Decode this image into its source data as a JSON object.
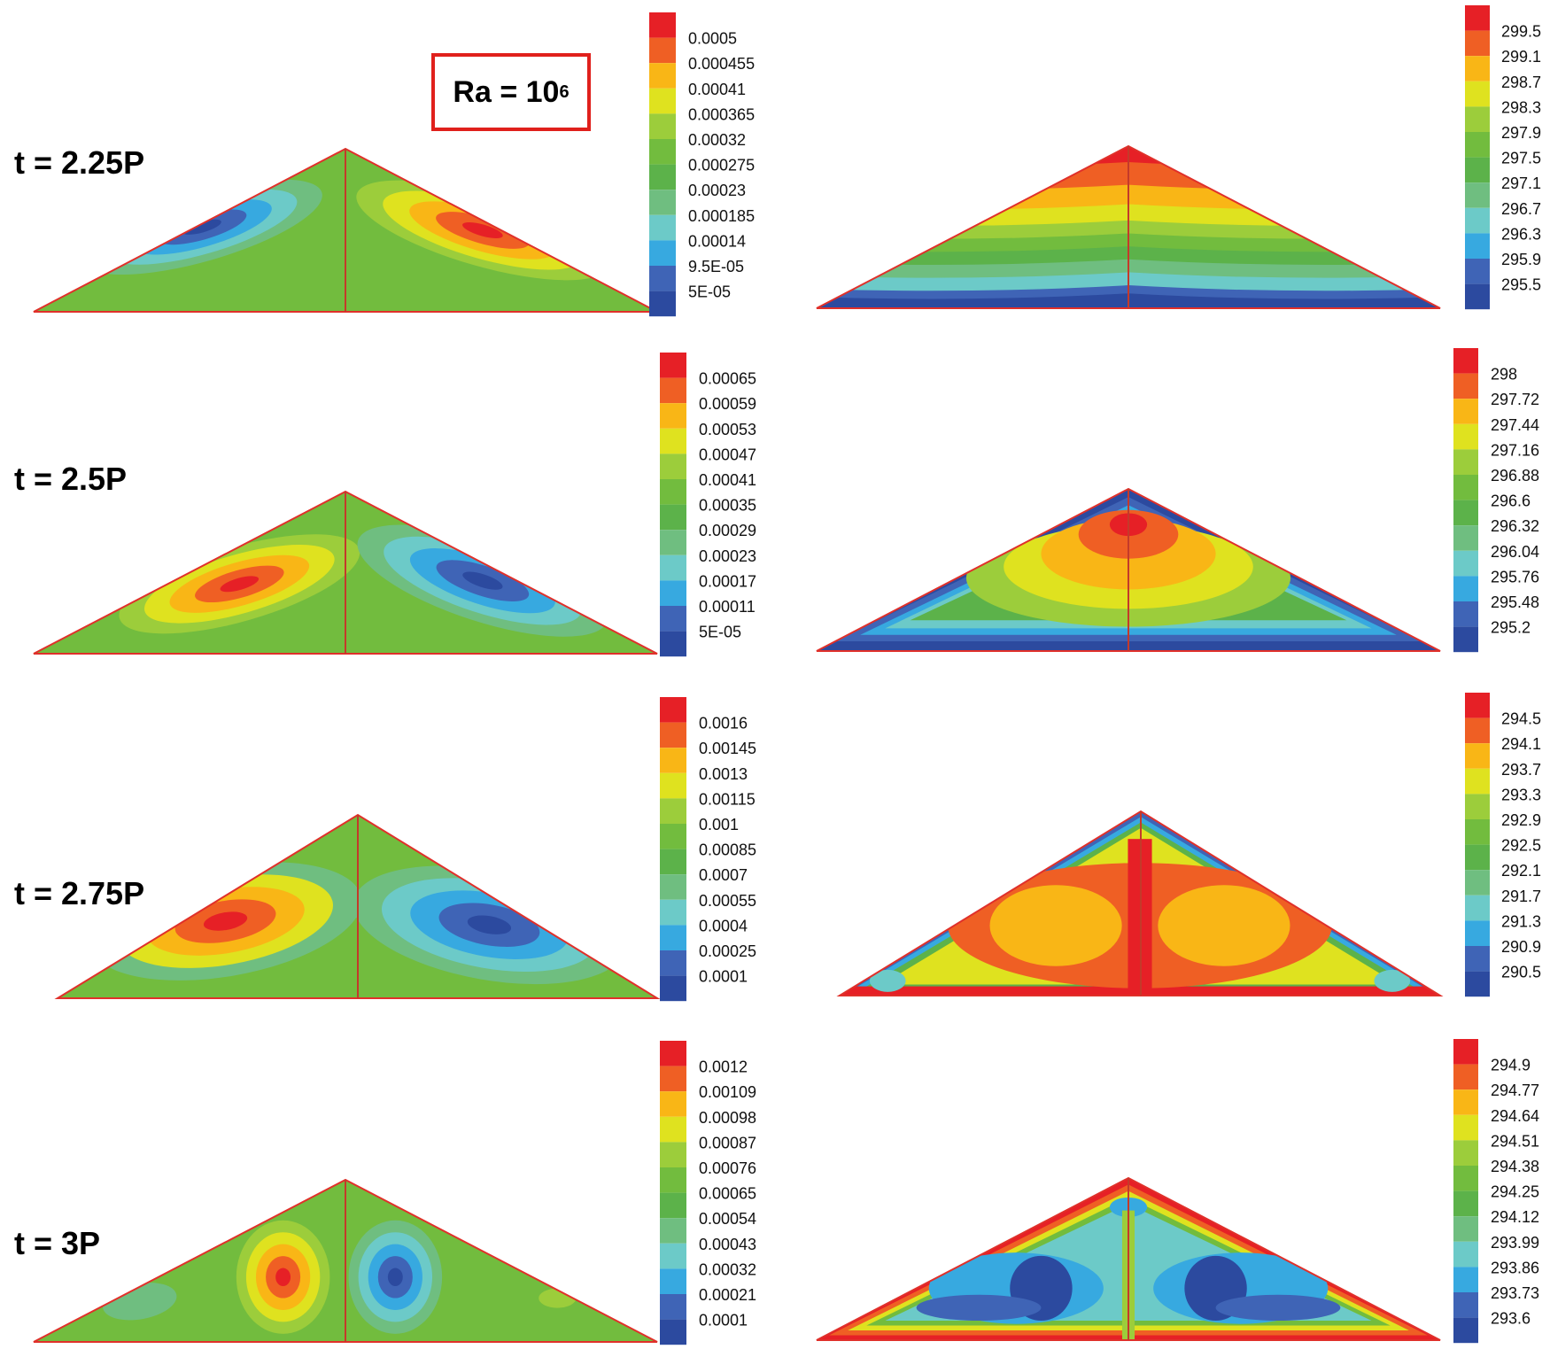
{
  "ra_label": {
    "base": "Ra = 10",
    "exponent": "6"
  },
  "palette": [
    "#2c4a9f",
    "#3f64b6",
    "#37a9e0",
    "#6ccac8",
    "#6fbe80",
    "#5cb24a",
    "#72bc3e",
    "#9ccd3b",
    "#dfe21f",
    "#f9b616",
    "#ef5f24",
    "#e62026"
  ],
  "rows": [
    {
      "time_label": "t = 2.25P",
      "left_colorbar": [
        "0.0005",
        "0.000455",
        "0.00041",
        "0.000365",
        "0.00032",
        "0.000275",
        "0.00023",
        "0.000185",
        "0.00014",
        "9.5E-05",
        "5E-05"
      ],
      "right_colorbar": [
        "299.5",
        "299.1",
        "298.7",
        "298.3",
        "297.9",
        "297.5",
        "297.1",
        "296.7",
        "296.3",
        "295.9",
        "295.5"
      ]
    },
    {
      "time_label": "t = 2.5P",
      "left_colorbar": [
        "0.00065",
        "0.00059",
        "0.00053",
        "0.00047",
        "0.00041",
        "0.00035",
        "0.00029",
        "0.00023",
        "0.00017",
        "0.00011",
        "5E-05"
      ],
      "right_colorbar": [
        "298",
        "297.72",
        "297.44",
        "297.16",
        "296.88",
        "296.6",
        "296.32",
        "296.04",
        "295.76",
        "295.48",
        "295.2"
      ]
    },
    {
      "time_label": "t = 2.75P",
      "left_colorbar": [
        "0.0016",
        "0.00145",
        "0.0013",
        "0.00115",
        "0.001",
        "0.00085",
        "0.0007",
        "0.00055",
        "0.0004",
        "0.00025",
        "0.0001"
      ],
      "right_colorbar": [
        "294.5",
        "294.1",
        "293.7",
        "293.3",
        "292.9",
        "292.5",
        "292.1",
        "291.7",
        "291.3",
        "290.9",
        "290.5"
      ]
    },
    {
      "time_label": "t = 3P",
      "left_colorbar": [
        "0.0012",
        "0.00109",
        "0.00098",
        "0.00087",
        "0.00076",
        "0.00065",
        "0.00054",
        "0.00043",
        "0.00032",
        "0.00021",
        "0.0001"
      ],
      "right_colorbar": [
        "294.9",
        "294.77",
        "294.64",
        "294.51",
        "294.38",
        "294.25",
        "294.12",
        "293.99",
        "293.86",
        "293.73",
        "293.6"
      ]
    }
  ]
}
